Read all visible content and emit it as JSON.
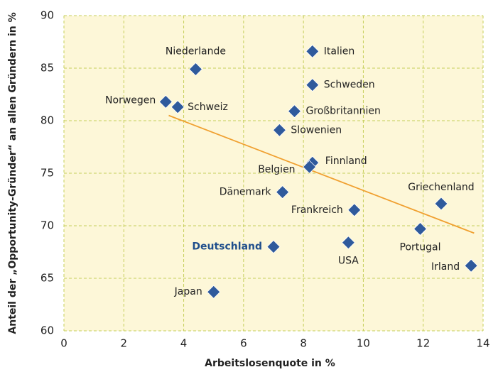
{
  "chart_data": {
    "type": "scatter",
    "x_label": "Arbeitslosenquote in %",
    "y_label": "Anteil der „Opportunity-Gründer“ an allen Gründern in %",
    "labels": [
      "Niederlande",
      "Italien",
      "Schweden",
      "Norwegen",
      "Schweiz",
      "Großbritannien",
      "Slowenien",
      "Finnland",
      "Belgien",
      "Dänemark",
      "Frankreich",
      "Griechenland",
      "Portugal",
      "USA",
      "Deutschland",
      "Irland",
      "Japan"
    ],
    "x": [
      4.4,
      8.3,
      8.3,
      3.4,
      3.8,
      7.7,
      7.2,
      8.3,
      8.2,
      7.3,
      9.7,
      12.6,
      11.9,
      9.5,
      7.0,
      13.6,
      5.0
    ],
    "y": [
      84.9,
      86.6,
      83.4,
      81.8,
      81.3,
      80.9,
      79.1,
      76.0,
      75.6,
      73.2,
      71.5,
      72.1,
      69.7,
      68.4,
      68.0,
      66.2,
      63.7
    ],
    "color": "#2f5a9c",
    "highlight": "Deutschland",
    "highlight_color": "#1f4e8c",
    "trendline": {
      "x": [
        3.5,
        13.7
      ],
      "y": [
        80.5,
        69.3
      ],
      "color": "#f0a030"
    },
    "xlim": [
      0,
      14
    ],
    "xticks": [
      0,
      2,
      4,
      6,
      8,
      10,
      12,
      14
    ],
    "ylim": [
      60,
      90
    ],
    "yticks": [
      60,
      65,
      70,
      75,
      80,
      85,
      90
    ],
    "grid": true,
    "background": "#fdf7d8",
    "grid_color": "#c5cf5a"
  }
}
